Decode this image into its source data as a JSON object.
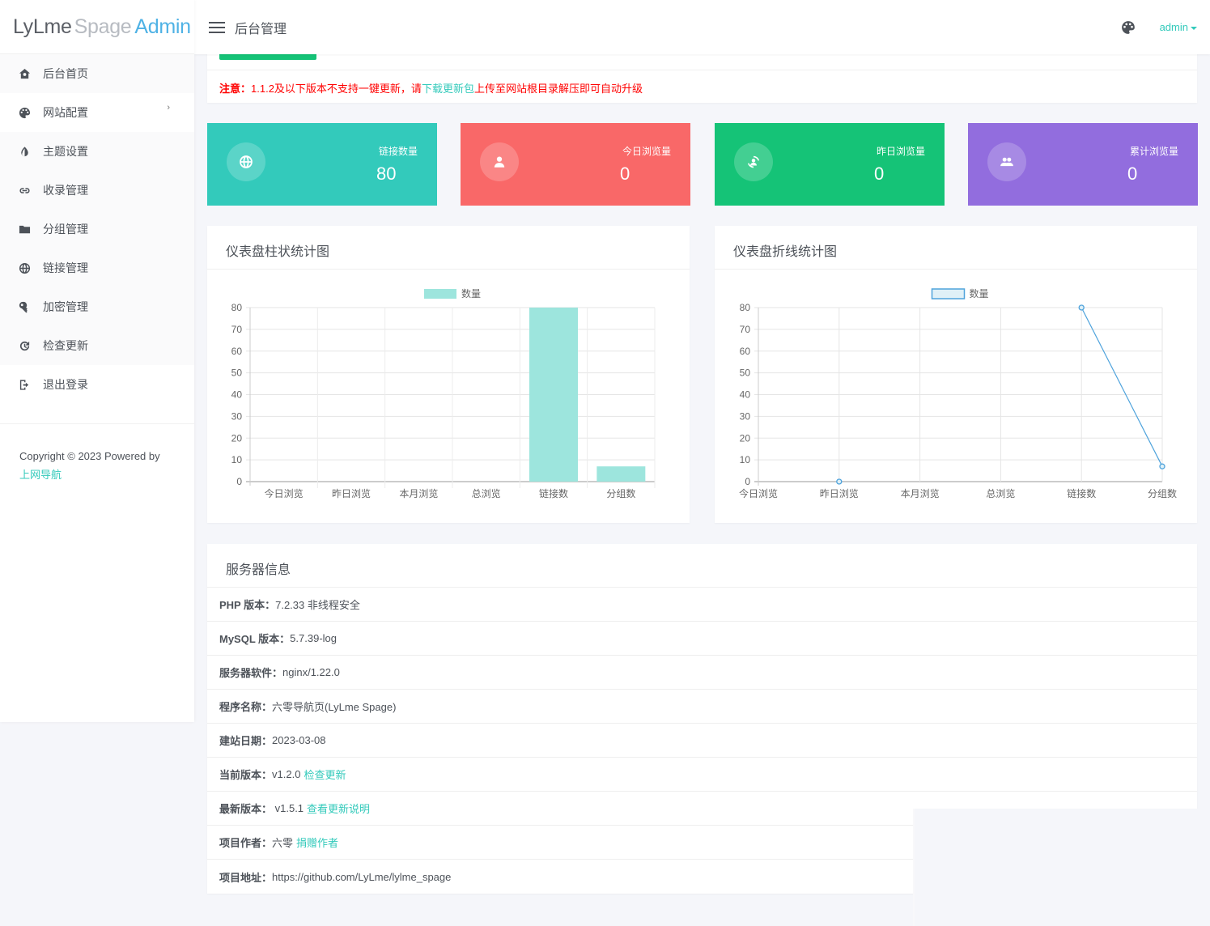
{
  "logo": {
    "part1": "LyLme",
    "part2": "Spage",
    "part3": "Admin"
  },
  "header": {
    "title": "后台管理",
    "user": "admin"
  },
  "sidebar": {
    "items": [
      {
        "label": "后台首页",
        "icon": "home-icon"
      },
      {
        "label": "网站配置",
        "icon": "palette-icon",
        "has_submenu": true,
        "arrow": "›"
      },
      {
        "label": "主题设置",
        "icon": "contrast-icon"
      },
      {
        "label": "收录管理",
        "icon": "link-icon"
      },
      {
        "label": "分组管理",
        "icon": "folder-icon"
      },
      {
        "label": "链接管理",
        "icon": "globe-icon"
      },
      {
        "label": "加密管理",
        "icon": "key-icon"
      },
      {
        "label": "检查更新",
        "icon": "refresh-icon"
      },
      {
        "label": "退出登录",
        "icon": "logout-icon"
      }
    ],
    "copyright": "Copyright © 2023 Powered by",
    "copyright_link": "上网导航"
  },
  "notice": {
    "prefix": "注意：",
    "text1": "1.1.2及以下版本不支持一键更新，请",
    "link": "下载更新包",
    "text2": "上传至网站根目录解压即可自动升级"
  },
  "stats": [
    {
      "label": "链接数量",
      "value": "80",
      "color": "#33cabb",
      "icon": "globe-icon"
    },
    {
      "label": "今日浏览量",
      "value": "0",
      "color": "#f96868",
      "icon": "user-icon"
    },
    {
      "label": "昨日浏览量",
      "value": "0",
      "color": "#15c377",
      "icon": "user-sync-icon"
    },
    {
      "label": "累计浏览量",
      "value": "0",
      "color": "#926dde",
      "icon": "users-icon"
    }
  ],
  "charts": {
    "bar_title": "仪表盘柱状统计图",
    "line_title": "仪表盘折线统计图"
  },
  "chart_data": [
    {
      "type": "bar",
      "title": "仪表盘柱状统计图",
      "categories": [
        "今日浏览",
        "昨日浏览",
        "本月浏览",
        "总浏览",
        "链接数",
        "分组数"
      ],
      "series": [
        {
          "name": "数量",
          "values": [
            0,
            0,
            0,
            0,
            80,
            7
          ],
          "color": "#9de5dd"
        }
      ],
      "xlabel": "",
      "ylabel": "",
      "ylim": [
        0,
        80
      ],
      "yticks": [
        0,
        10,
        20,
        30,
        40,
        50,
        60,
        70,
        80
      ],
      "grid": true,
      "legend_position": "top"
    },
    {
      "type": "line",
      "title": "仪表盘折线统计图",
      "categories": [
        "今日浏览",
        "昨日浏览",
        "本月浏览",
        "总浏览",
        "链接数",
        "分组数"
      ],
      "series": [
        {
          "name": "数量",
          "values": [
            null,
            0,
            null,
            null,
            80,
            7
          ],
          "color": "#4fa3dc"
        }
      ],
      "xlabel": "",
      "ylabel": "",
      "ylim": [
        0,
        80
      ],
      "yticks": [
        0,
        10,
        20,
        30,
        40,
        50,
        60,
        70,
        80
      ],
      "grid": true,
      "legend_position": "top"
    }
  ],
  "server": {
    "title": "服务器信息",
    "rows": [
      {
        "label": "PHP 版本：",
        "value": "7.2.33 非线程安全"
      },
      {
        "label": "MySQL 版本：",
        "value": "5.7.39-log"
      },
      {
        "label": "服务器软件：",
        "value": "nginx/1.22.0"
      },
      {
        "label": "程序名称：",
        "value": "六零导航页(LyLme Spage)"
      },
      {
        "label": "建站日期：",
        "value": "2023-03-08"
      },
      {
        "label": "当前版本：",
        "value": "v1.2.0",
        "link": "检查更新"
      },
      {
        "label": "最新版本：",
        "value": " v1.5.1",
        "link": "查看更新说明"
      },
      {
        "label": "项目作者：",
        "value": "六零",
        "link": "捐赠作者"
      },
      {
        "label": "项目地址：",
        "value": "https://github.com/LyLme/lylme_spage"
      }
    ]
  }
}
